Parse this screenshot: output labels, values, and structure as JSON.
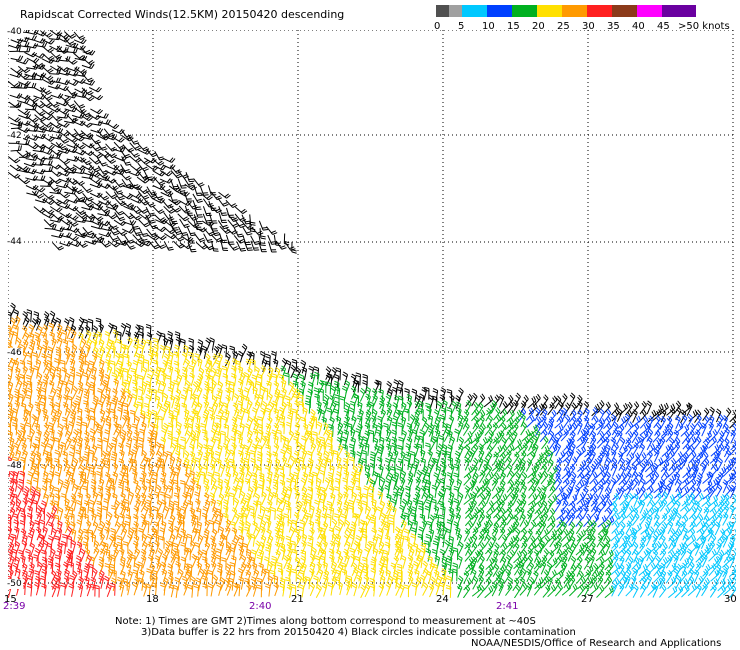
{
  "title": "Rapidscat Corrected Winds(12.5KM) 20150420 descending",
  "colorbar": {
    "labels": [
      "0",
      "5",
      "10",
      "15",
      "20",
      "25",
      "30",
      "35",
      "40",
      "45",
      ">50 knots"
    ],
    "colors": [
      "#505050",
      "#a0a0a0",
      "#00c8ff",
      "#0040ff",
      "#00b020",
      "#ffe000",
      "#ff9a00",
      "#ff2020",
      "#8b3a1a",
      "#ff00ff",
      "#6a00a0"
    ]
  },
  "map": {
    "lat_labels": [
      "-40",
      "-42",
      "-44",
      "-46",
      "-48",
      "-50"
    ],
    "lon_labels": [
      "15",
      "18",
      "21",
      "24",
      "27",
      "30"
    ],
    "time_labels": [
      "2:39",
      "2:40",
      "2:41"
    ]
  },
  "notes": {
    "line1": "Note: 1) Times are GMT 2)Times along bottom correspond to measurement at ~40S",
    "line2": "3)Data buffer is 22 hrs from 20150420 4) Black circles indicate possible contamination",
    "line3": "NOAA/NESDIS/Office of Research and Applications"
  }
}
